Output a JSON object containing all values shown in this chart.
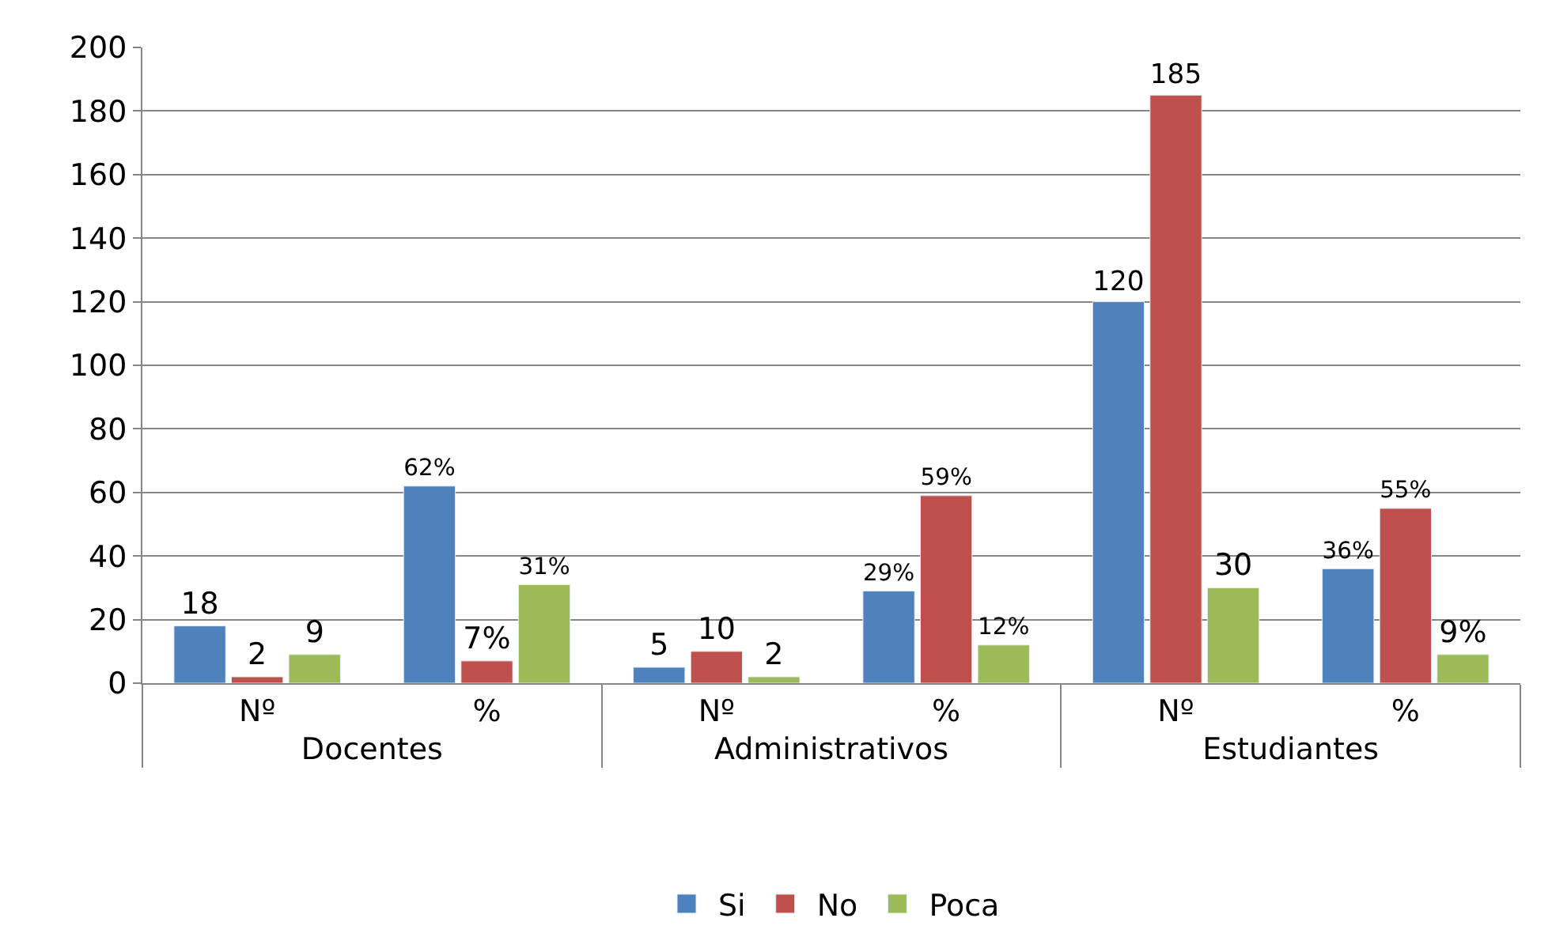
{
  "chart_data": {
    "type": "bar",
    "categories": [
      "Nº",
      "%",
      "Nº",
      "%",
      "Nº",
      "%"
    ],
    "annotations": [
      "Docentes",
      "Administrativos",
      "Estudiantes"
    ],
    "series": [
      {
        "name": "Si",
        "color": "#4f81bd",
        "values": [
          18,
          62,
          5,
          29,
          120,
          36
        ],
        "value_labels": [
          "18",
          "62%",
          "5",
          "29%",
          "120",
          "36%"
        ]
      },
      {
        "name": "No",
        "color": "#c0504d",
        "values": [
          2,
          7,
          10,
          59,
          185,
          55
        ],
        "value_labels": [
          "2",
          "7%",
          "10",
          "59%",
          "185",
          "55%"
        ]
      },
      {
        "name": "Poca",
        "color": "#9bbb59",
        "values": [
          9,
          31,
          2,
          12,
          30,
          9
        ],
        "value_labels": [
          "9",
          "31%",
          "2",
          "12%",
          "30",
          "9%"
        ]
      }
    ],
    "ylim": [
      0,
      200
    ],
    "yticks": [
      0,
      20,
      40,
      60,
      80,
      100,
      120,
      140,
      160,
      180,
      200
    ],
    "grid": "y",
    "legend": "bottom"
  }
}
